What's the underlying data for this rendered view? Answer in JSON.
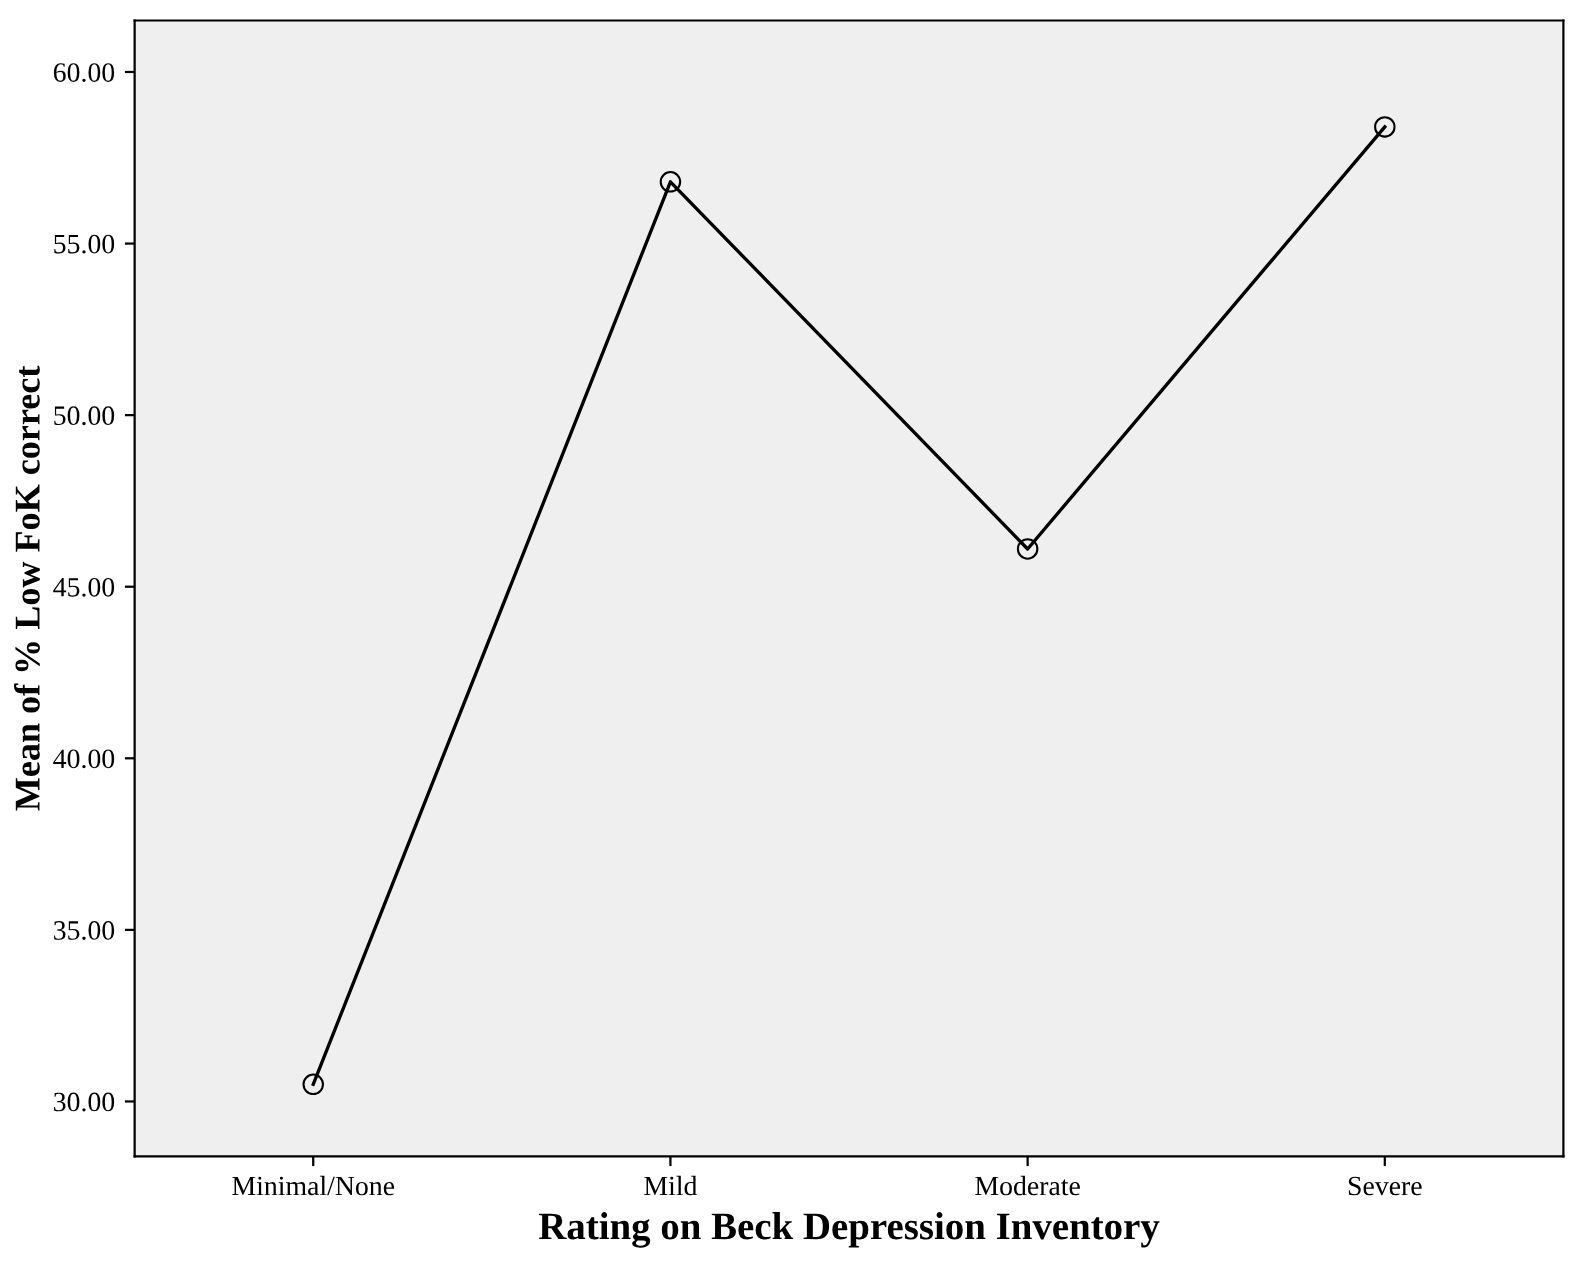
{
  "chart_data": {
    "type": "line",
    "xlabel": "Rating on Beck Depression Inventory",
    "ylabel": "Mean of % Low FoK correct",
    "categories": [
      "Minimal/None",
      "Mild",
      "Moderate",
      "Severe"
    ],
    "series": [
      {
        "color": "#000000",
        "values": [
          30.5,
          56.8,
          46.1,
          58.4
        ]
      }
    ],
    "ylim": [
      28.4,
      61.5
    ],
    "yticks": [
      {
        "value": 30,
        "label": "30.00"
      },
      {
        "value": 35,
        "label": "35.00"
      },
      {
        "value": 40,
        "label": "40.00"
      },
      {
        "value": 45,
        "label": "45.00"
      },
      {
        "value": 50,
        "label": "50.00"
      },
      {
        "value": 55,
        "label": "55.00"
      },
      {
        "value": 60,
        "label": "60.00"
      }
    ],
    "grid": false,
    "legend": false,
    "marker": "circle",
    "line_style": "solid"
  }
}
